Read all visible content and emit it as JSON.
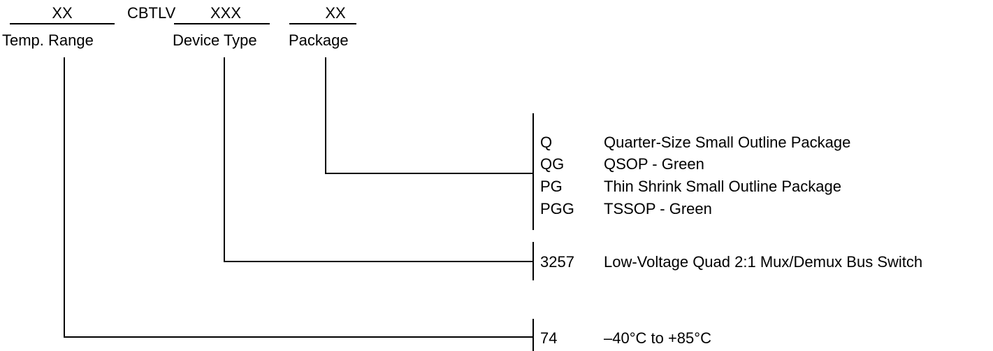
{
  "header": {
    "temp_placeholder": "XX",
    "prefix": "CBTLV",
    "device_placeholder": "XXX",
    "package_placeholder": "XX",
    "temp_label": "Temp. Range",
    "device_label": "Device Type",
    "package_label": "Package"
  },
  "packages": [
    {
      "code": "Q",
      "description": "Quarter-Size Small Outline Package"
    },
    {
      "code": "QG",
      "description": "QSOP - Green"
    },
    {
      "code": "PG",
      "description": "Thin Shrink Small Outline Package"
    },
    {
      "code": "PGG",
      "description": "TSSOP - Green"
    }
  ],
  "device": {
    "code": "3257",
    "description": "Low-Voltage Quad 2:1 Mux/Demux Bus Switch"
  },
  "temperature": {
    "code": "74",
    "description": "–40°C to +85°C"
  }
}
